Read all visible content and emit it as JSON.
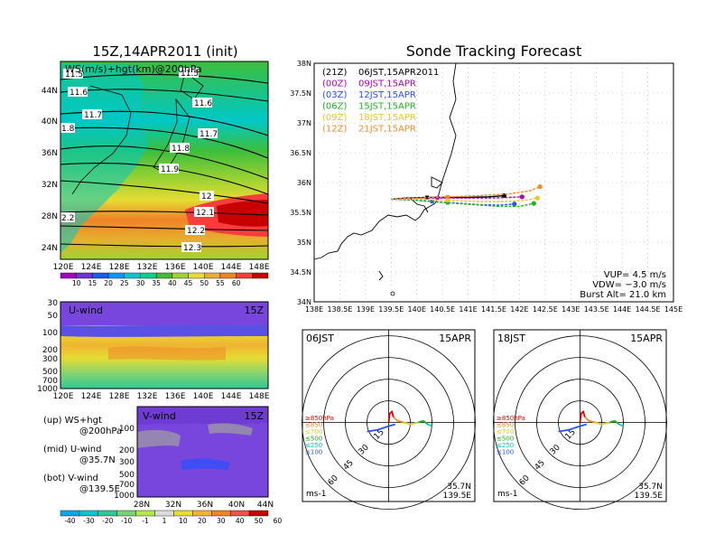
{
  "left_title": "15Z,14APR2011 (init)",
  "right_title": "Sonde Tracking Forecast",
  "top_map": {
    "label": "WS(m/s)+hgt(km)@200hPa",
    "contour_labels": [
      "11.5",
      "11.5",
      "11.6",
      "11.6",
      "11.7",
      "11.7",
      "1.8",
      "11.8",
      "11.9",
      "12",
      "12.1",
      "2.2",
      "12.2",
      "12.3"
    ],
    "lat_ticks": [
      "44N",
      "40N",
      "36N",
      "32N",
      "28N",
      "24N"
    ],
    "lon_ticks": [
      "120E",
      "124E",
      "128E",
      "132E",
      "136E",
      "140E",
      "144E",
      "148E"
    ]
  },
  "colorbar_top": {
    "labels": [
      "10",
      "15",
      "20",
      "25",
      "30",
      "35",
      "40",
      "45",
      "50",
      "55",
      "60"
    ],
    "colors": [
      "#a000c8",
      "#6e32dc",
      "#1e5af0",
      "#0096ff",
      "#00c8c8",
      "#00d28c",
      "#3cbe3c",
      "#a0d232",
      "#e6dc32",
      "#e6af2d",
      "#f08228",
      "#fa3c3c",
      "#c80000"
    ]
  },
  "u_panel": {
    "label": "U-wind",
    "time": "15Z",
    "y_ticks": [
      "30",
      "50",
      "100",
      "200",
      "300",
      "500",
      "700",
      "1000"
    ],
    "x_ticks": [
      "120E",
      "124E",
      "128E",
      "132E",
      "136E",
      "140E",
      "144E",
      "148E"
    ]
  },
  "v_panel": {
    "label": "V-wind",
    "time": "15Z",
    "y_ticks": [
      "100",
      "200",
      "300",
      "500",
      "700",
      "1000"
    ],
    "x_ticks": [
      "28N",
      "32N",
      "36N",
      "40N",
      "44N"
    ]
  },
  "legend_notes": [
    {
      "line1": "(up) WS+hgt",
      "line2": "@200hPa"
    },
    {
      "line1": "(mid) U-wind",
      "line2": "@35.7N"
    },
    {
      "line1": "(bot) V-wind",
      "line2": "@139.5E"
    }
  ],
  "colorbar_bottom": {
    "labels": [
      "-40",
      "-30",
      "-20",
      "-10",
      "-1",
      "1",
      "10",
      "20",
      "30",
      "40",
      "50",
      "60"
    ],
    "colors": [
      "#00aadc",
      "#00c8c8",
      "#32c896",
      "#78d278",
      "#b4e650",
      "#dcdcdc",
      "#e6dc32",
      "#f0b432",
      "#f08228",
      "#f05050",
      "#c80000"
    ]
  },
  "track_map": {
    "lat_ticks": [
      "38N",
      "37.5N",
      "37N",
      "36.5N",
      "36N",
      "35.5N",
      "35N",
      "34.5N",
      "34N"
    ],
    "lon_ticks": [
      "138E",
      "138.5E",
      "139E",
      "139.5E",
      "140E",
      "140.5E",
      "141E",
      "141.5E",
      "142E",
      "142.5E",
      "143E",
      "143.5E",
      "144E",
      "144.5E",
      "145E"
    ],
    "legend": [
      {
        "utc": "(21Z)",
        "jst": "06JST,15APR2011",
        "color": "#000000"
      },
      {
        "utc": "(00Z)",
        "jst": "09JST,15APR",
        "color": "#b400b4"
      },
      {
        "utc": "(03Z)",
        "jst": "12JST,15APR",
        "color": "#2850ff"
      },
      {
        "utc": "(06Z)",
        "jst": "15JST,15APR",
        "color": "#1eb41e"
      },
      {
        "utc": "(09Z)",
        "jst": "18JST,15APR",
        "color": "#e6c828"
      },
      {
        "utc": "(12Z)",
        "jst": "21JST,15APR",
        "color": "#f08c28"
      }
    ],
    "vup": "VUP= 4.5 m/s",
    "vdw": "VDW= −3.0 m/s",
    "burst": "Burst Alt= 21.0 km"
  },
  "chart_data": [
    {
      "type": "line",
      "title": "Sonde Tracking Forecast",
      "xlim": [
        138,
        145
      ],
      "ylim": [
        34,
        38
      ],
      "series": [
        {
          "name": "06JST,15APR2011",
          "x": [
            139.5,
            139.8,
            140.2,
            140.6,
            141.0,
            141.4,
            141.7
          ],
          "y": [
            35.72,
            35.74,
            35.75,
            35.75,
            35.75,
            35.76,
            35.78
          ]
        },
        {
          "name": "09JST,15APR",
          "x": [
            139.5,
            139.9,
            140.4,
            140.9,
            141.4,
            141.8,
            142.05
          ],
          "y": [
            35.72,
            35.74,
            35.74,
            35.74,
            35.74,
            35.75,
            35.76
          ]
        },
        {
          "name": "12JST,15APR",
          "x": [
            139.5,
            139.9,
            140.3,
            140.7,
            141.2,
            141.6,
            141.9
          ],
          "y": [
            35.72,
            35.71,
            35.68,
            35.66,
            35.63,
            35.62,
            35.64
          ]
        },
        {
          "name": "15JST,15APR",
          "x": [
            139.5,
            140.0,
            140.6,
            141.1,
            141.6,
            142.0,
            142.28
          ],
          "y": [
            35.72,
            35.7,
            35.66,
            35.63,
            35.6,
            35.6,
            35.65
          ]
        },
        {
          "name": "18JST,15APR",
          "x": [
            139.5,
            140.0,
            140.6,
            141.2,
            141.7,
            142.1,
            142.35
          ],
          "y": [
            35.72,
            35.72,
            35.7,
            35.68,
            35.68,
            35.7,
            35.74
          ]
        },
        {
          "name": "21JST,15APR",
          "x": [
            139.5,
            140.0,
            140.6,
            141.2,
            141.8,
            142.2,
            142.4
          ],
          "y": [
            35.72,
            35.74,
            35.76,
            35.78,
            35.81,
            35.86,
            35.93
          ]
        }
      ]
    }
  ],
  "hodo_left": {
    "title": "06JST",
    "date": "15APR",
    "rings": [
      "15",
      "30",
      "45",
      "60"
    ],
    "lat": "35.7N",
    "lon": "139.5E",
    "unit": "ms-1",
    "levels": [
      {
        "label": "≥850hPa",
        "color": "#e60000"
      },
      {
        "label": "≤850",
        "color": "#f08c28"
      },
      {
        "label": "≤700",
        "color": "#e6c828"
      },
      {
        "label": "≤500",
        "color": "#1eb41e"
      },
      {
        "label": "≤250",
        "color": "#00c8c8"
      },
      {
        "label": "≤100",
        "color": "#2850ff"
      }
    ]
  },
  "hodo_right": {
    "title": "18JST",
    "date": "15APR",
    "rings": [
      "15",
      "30",
      "45",
      "60"
    ],
    "lat": "35.7N",
    "lon": "139.5E",
    "unit": "ms-1",
    "levels": [
      {
        "label": "≥850hPa",
        "color": "#e60000"
      },
      {
        "label": "≤850",
        "color": "#f08c28"
      },
      {
        "label": "≤700",
        "color": "#e6c828"
      },
      {
        "label": "≤500",
        "color": "#1eb41e"
      },
      {
        "label": "≤250",
        "color": "#00c8c8"
      },
      {
        "label": "≤100",
        "color": "#2850ff"
      }
    ]
  }
}
